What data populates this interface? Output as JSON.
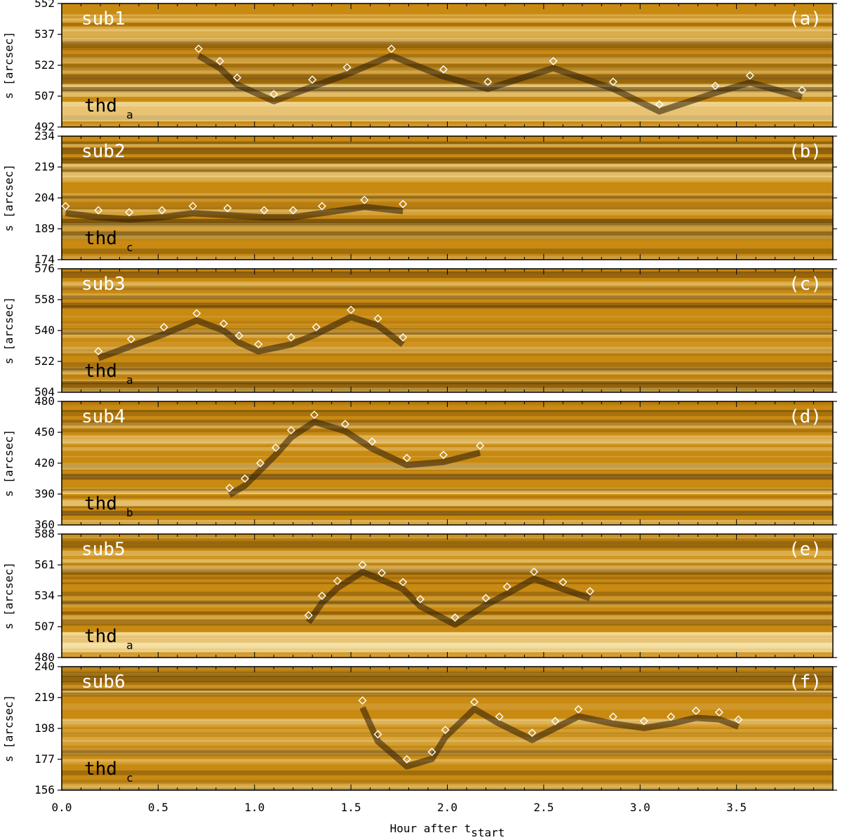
{
  "chart_data": {
    "type": "scatter",
    "xlabel": "Hour after t",
    "xlabel_subscript": "start",
    "x_ticks": [
      "0.0",
      "0.5",
      "1.0",
      "1.5",
      "2.0",
      "2.5",
      "3.0",
      "3.5"
    ],
    "x_tick_values": [
      0.0,
      0.5,
      1.0,
      1.5,
      2.0,
      2.5,
      3.0,
      3.5
    ],
    "xlim": [
      0.0,
      4.0
    ],
    "ylabel": "s [arcsec]",
    "colors": {
      "background_mid": "#c98a12",
      "background_dark": "#2a1a03",
      "background_bright": "#fff3c2",
      "marker": "#ffffff"
    },
    "panels": [
      {
        "name": "sub1",
        "letter": "(a)",
        "thd": "thd",
        "thd_sub": "a",
        "ylim": [
          492,
          552
        ],
        "y_ticks": [
          492,
          507,
          522,
          537,
          552
        ],
        "points": [
          [
            0.71,
            530
          ],
          [
            0.82,
            524
          ],
          [
            0.91,
            516
          ],
          [
            1.1,
            508
          ],
          [
            1.3,
            515
          ],
          [
            1.48,
            521
          ],
          [
            1.71,
            530
          ],
          [
            1.98,
            520
          ],
          [
            2.21,
            514
          ],
          [
            2.55,
            524
          ],
          [
            2.86,
            514
          ],
          [
            3.1,
            503
          ],
          [
            3.39,
            512
          ],
          [
            3.57,
            517
          ],
          [
            3.84,
            510
          ]
        ]
      },
      {
        "name": "sub2",
        "letter": "(b)",
        "thd": "thd",
        "thd_sub": "c",
        "ylim": [
          174,
          234
        ],
        "y_ticks": [
          174,
          189,
          204,
          219,
          234
        ],
        "points": [
          [
            0.02,
            200
          ],
          [
            0.19,
            198
          ],
          [
            0.35,
            197
          ],
          [
            0.52,
            198
          ],
          [
            0.68,
            200
          ],
          [
            0.86,
            199
          ],
          [
            1.05,
            198
          ],
          [
            1.2,
            198
          ],
          [
            1.35,
            200
          ],
          [
            1.57,
            203
          ],
          [
            1.77,
            201
          ]
        ]
      },
      {
        "name": "sub3",
        "letter": "(c)",
        "thd": "thd",
        "thd_sub": "a",
        "ylim": [
          504,
          576
        ],
        "y_ticks": [
          504,
          522,
          540,
          558,
          576
        ],
        "points": [
          [
            0.19,
            528
          ],
          [
            0.36,
            535
          ],
          [
            0.53,
            542
          ],
          [
            0.7,
            550
          ],
          [
            0.84,
            544
          ],
          [
            0.92,
            537
          ],
          [
            1.02,
            532
          ],
          [
            1.19,
            536
          ],
          [
            1.32,
            542
          ],
          [
            1.5,
            552
          ],
          [
            1.64,
            547
          ],
          [
            1.77,
            536
          ]
        ]
      },
      {
        "name": "sub4",
        "letter": "(d)",
        "thd": "thd",
        "thd_sub": "b",
        "ylim": [
          360,
          480
        ],
        "y_ticks": [
          360,
          390,
          420,
          450,
          480
        ],
        "points": [
          [
            0.87,
            396
          ],
          [
            0.95,
            405
          ],
          [
            1.03,
            420
          ],
          [
            1.11,
            435
          ],
          [
            1.19,
            452
          ],
          [
            1.31,
            467
          ],
          [
            1.47,
            458
          ],
          [
            1.61,
            441
          ],
          [
            1.79,
            425
          ],
          [
            1.98,
            428
          ],
          [
            2.17,
            437
          ]
        ]
      },
      {
        "name": "sub5",
        "letter": "(e)",
        "thd": "thd",
        "thd_sub": "a",
        "ylim": [
          480,
          588
        ],
        "y_ticks": [
          480,
          507,
          534,
          561,
          588
        ],
        "points": [
          [
            1.28,
            517
          ],
          [
            1.35,
            534
          ],
          [
            1.43,
            547
          ],
          [
            1.56,
            561
          ],
          [
            1.66,
            554
          ],
          [
            1.77,
            546
          ],
          [
            1.86,
            531
          ],
          [
            2.04,
            515
          ],
          [
            2.2,
            532
          ],
          [
            2.31,
            542
          ],
          [
            2.45,
            555
          ],
          [
            2.6,
            546
          ],
          [
            2.74,
            538
          ]
        ]
      },
      {
        "name": "sub6",
        "letter": "(f)",
        "thd": "thd",
        "thd_sub": "c",
        "ylim": [
          156,
          240
        ],
        "y_ticks": [
          156,
          177,
          198,
          219,
          240
        ],
        "points": [
          [
            1.56,
            217
          ],
          [
            1.64,
            194
          ],
          [
            1.79,
            177
          ],
          [
            1.92,
            182
          ],
          [
            1.99,
            197
          ],
          [
            2.14,
            216
          ],
          [
            2.27,
            206
          ],
          [
            2.44,
            195
          ],
          [
            2.56,
            203
          ],
          [
            2.68,
            211
          ],
          [
            2.86,
            206
          ],
          [
            3.02,
            203
          ],
          [
            3.16,
            206
          ],
          [
            3.29,
            210
          ],
          [
            3.41,
            209
          ],
          [
            3.51,
            204
          ]
        ]
      }
    ]
  }
}
